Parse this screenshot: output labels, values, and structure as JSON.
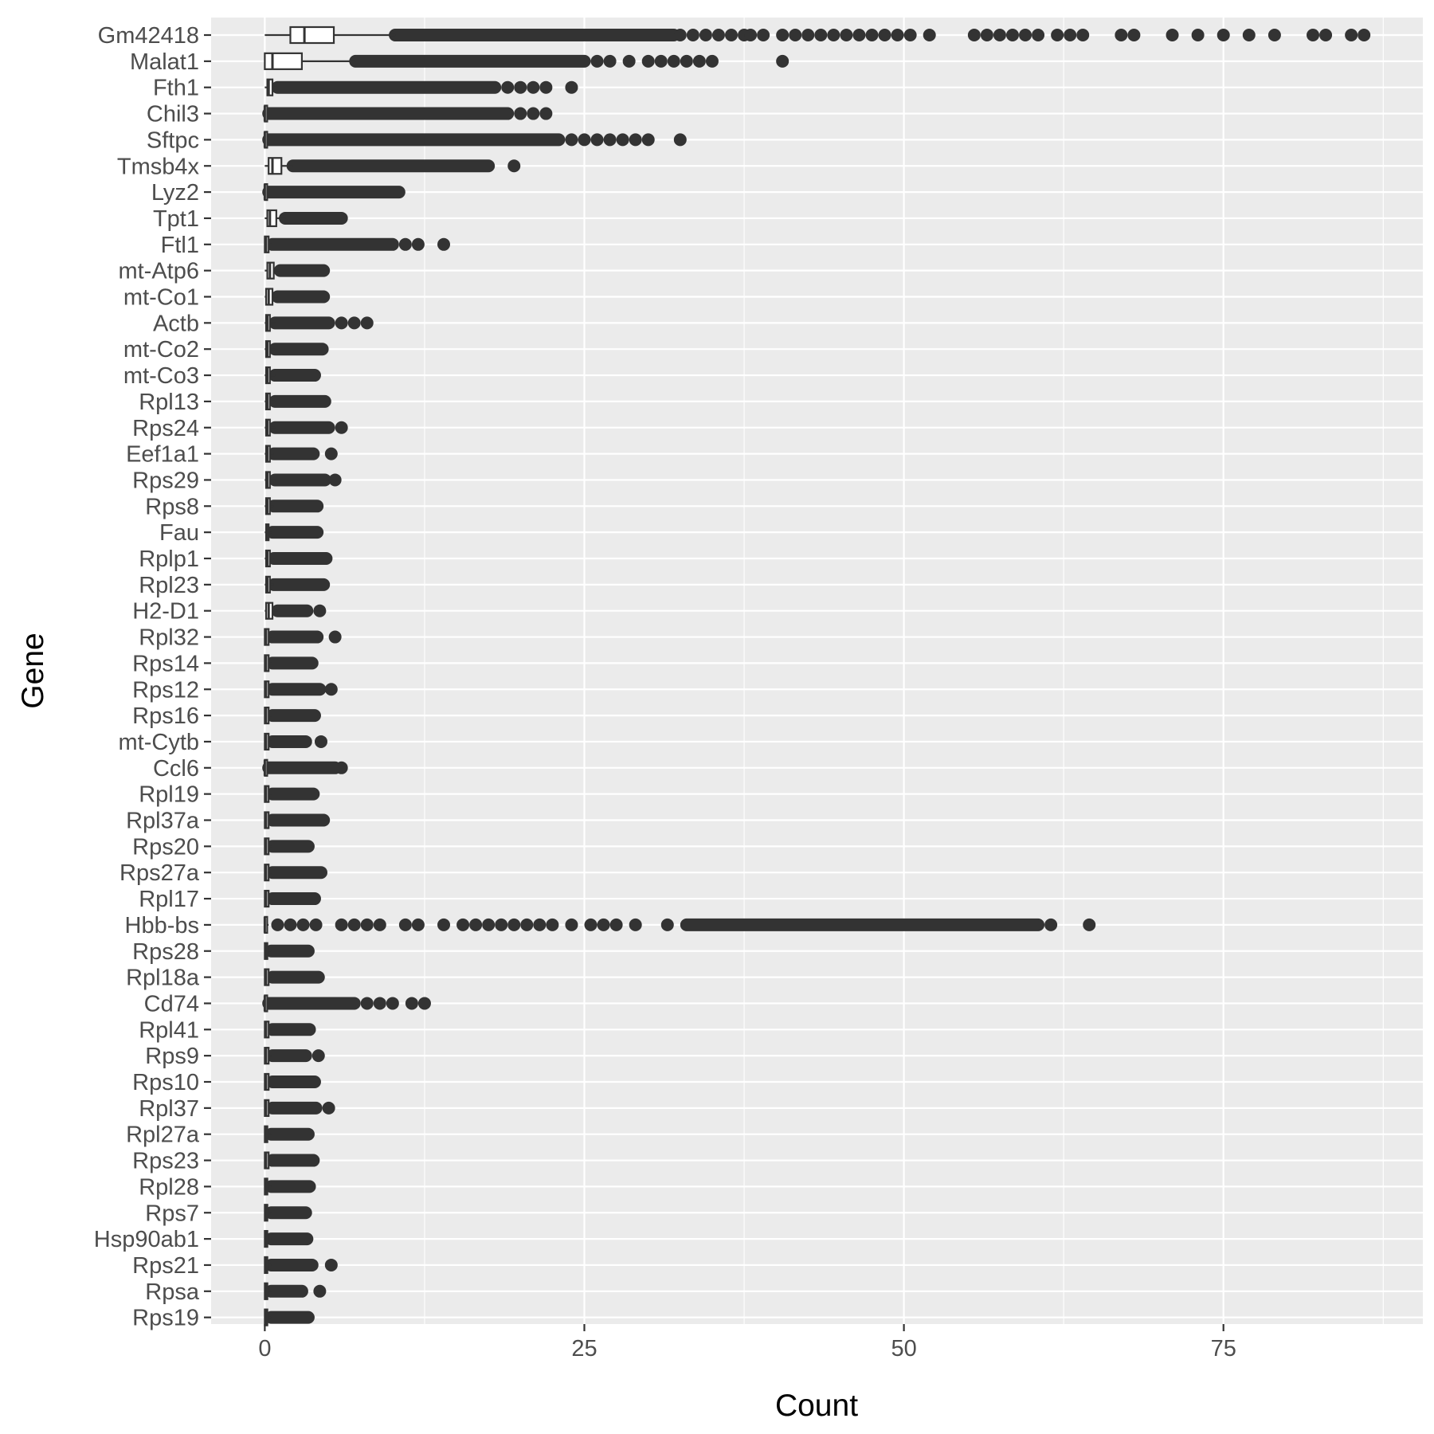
{
  "chart_data": {
    "type": "box",
    "orientation": "horizontal",
    "xlabel": "Count",
    "ylabel": "Gene",
    "xlim": [
      -4.2,
      90.6
    ],
    "x_ticks": [
      0,
      25,
      50,
      75
    ],
    "x_tick_labels": [
      "0",
      "25",
      "50",
      "75"
    ],
    "grid": true,
    "highlight_gene": "Hbb-bs",
    "colors": {
      "panel": "#ebebeb",
      "grid": "#ffffff",
      "mark": "#333333",
      "box_fill": "#ffffff",
      "tick_label": "#4d4d4d",
      "highlight_label": "#00008b"
    },
    "genes": [
      {
        "name": "Gm42418",
        "min": 0,
        "q1": 2,
        "median": 3.1,
        "q3": 5.4,
        "whisker_hi": 10.2,
        "outlier_range": [
          10.2,
          32
        ],
        "outliers": [
          32.5,
          33.5,
          34.5,
          35.5,
          36.5,
          37.5,
          38,
          39,
          40.5,
          41.5,
          42.5,
          43.5,
          44.5,
          45.5,
          46.5,
          47.5,
          48.5,
          49.5,
          50.5,
          52,
          55.5,
          56.5,
          57.5,
          58.5,
          59.5,
          60.5,
          62,
          63,
          64,
          67,
          68,
          71,
          73,
          75,
          77,
          79,
          82,
          83,
          85,
          86
        ]
      },
      {
        "name": "Malat1",
        "min": 0,
        "q1": 0,
        "median": 0.6,
        "q3": 2.9,
        "whisker_hi": 7.1,
        "outlier_range": [
          7.1,
          25
        ],
        "outliers": [
          26,
          27,
          28.5,
          30,
          31,
          32,
          33,
          34,
          35,
          40.5
        ]
      },
      {
        "name": "Fth1",
        "min": 0,
        "q1": 0.2,
        "median": 0.3,
        "q3": 0.6,
        "whisker_hi": 1.0,
        "outlier_range": [
          1.0,
          18
        ],
        "outliers": [
          19,
          20,
          21,
          22,
          24
        ]
      },
      {
        "name": "Chil3",
        "min": 0,
        "q1": 0,
        "median": 0,
        "q3": 0.1,
        "whisker_hi": 0.3,
        "outlier_range": [
          0.3,
          19
        ],
        "outliers": [
          20,
          21,
          22
        ]
      },
      {
        "name": "Sftpc",
        "min": 0,
        "q1": 0,
        "median": 0,
        "q3": 0.1,
        "whisker_hi": 0.3,
        "outlier_range": [
          0.3,
          23
        ],
        "outliers": [
          24,
          25,
          26,
          27,
          28,
          29,
          30,
          32.5
        ]
      },
      {
        "name": "Tmsb4x",
        "min": 0,
        "q1": 0.3,
        "median": 0.6,
        "q3": 1.3,
        "whisker_hi": 2.2,
        "outlier_range": [
          2.2,
          17.5
        ],
        "outliers": [
          19.5
        ]
      },
      {
        "name": "Lyz2",
        "min": 0,
        "q1": 0,
        "median": 0,
        "q3": 0.1,
        "whisker_hi": 0.3,
        "outlier_range": [
          0.3,
          10.5
        ],
        "outliers": []
      },
      {
        "name": "Tpt1",
        "min": 0,
        "q1": 0.2,
        "median": 0.4,
        "q3": 0.9,
        "whisker_hi": 1.6,
        "outlier_range": [
          1.6,
          6
        ],
        "outliers": []
      },
      {
        "name": "Ftl1",
        "min": 0,
        "q1": 0,
        "median": 0.1,
        "q3": 0.3,
        "whisker_hi": 0.6,
        "outlier_range": [
          0.6,
          10
        ],
        "outliers": [
          11,
          12,
          14
        ]
      },
      {
        "name": "mt-Atp6",
        "min": 0,
        "q1": 0.2,
        "median": 0.4,
        "q3": 0.7,
        "whisker_hi": 1.2,
        "outlier_range": [
          1.2,
          4.6
        ],
        "outliers": []
      },
      {
        "name": "mt-Co1",
        "min": 0,
        "q1": 0.1,
        "median": 0.3,
        "q3": 0.6,
        "whisker_hi": 1.0,
        "outlier_range": [
          1.0,
          4.6
        ],
        "outliers": []
      },
      {
        "name": "Actb",
        "min": 0,
        "q1": 0.1,
        "median": 0.2,
        "q3": 0.4,
        "whisker_hi": 0.8,
        "outlier_range": [
          0.8,
          5
        ],
        "outliers": [
          6,
          7,
          8
        ]
      },
      {
        "name": "mt-Co2",
        "min": 0,
        "q1": 0.1,
        "median": 0.2,
        "q3": 0.4,
        "whisker_hi": 0.8,
        "outlier_range": [
          0.8,
          4.5
        ],
        "outliers": []
      },
      {
        "name": "mt-Co3",
        "min": 0,
        "q1": 0.1,
        "median": 0.2,
        "q3": 0.4,
        "whisker_hi": 0.8,
        "outlier_range": [
          0.8,
          3.9
        ],
        "outliers": []
      },
      {
        "name": "Rpl13",
        "min": 0,
        "q1": 0.1,
        "median": 0.2,
        "q3": 0.4,
        "whisker_hi": 0.8,
        "outlier_range": [
          0.8,
          4.7
        ],
        "outliers": []
      },
      {
        "name": "Rps24",
        "min": 0,
        "q1": 0.1,
        "median": 0.2,
        "q3": 0.4,
        "whisker_hi": 0.8,
        "outlier_range": [
          0.8,
          5
        ],
        "outliers": [
          6
        ]
      },
      {
        "name": "Eef1a1",
        "min": 0,
        "q1": 0.1,
        "median": 0.2,
        "q3": 0.4,
        "whisker_hi": 0.7,
        "outlier_range": [
          0.7,
          3.8
        ],
        "outliers": [
          5.2
        ]
      },
      {
        "name": "Rps29",
        "min": 0,
        "q1": 0.1,
        "median": 0.2,
        "q3": 0.4,
        "whisker_hi": 0.8,
        "outlier_range": [
          0.8,
          4.7
        ],
        "outliers": [
          5.5
        ]
      },
      {
        "name": "Rps8",
        "min": 0,
        "q1": 0.1,
        "median": 0.2,
        "q3": 0.4,
        "whisker_hi": 0.7,
        "outlier_range": [
          0.7,
          4.1
        ],
        "outliers": []
      },
      {
        "name": "Fau",
        "min": 0,
        "q1": 0.1,
        "median": 0.2,
        "q3": 0.3,
        "whisker_hi": 0.6,
        "outlier_range": [
          0.6,
          4.1
        ],
        "outliers": []
      },
      {
        "name": "Rplp1",
        "min": 0,
        "q1": 0.1,
        "median": 0.2,
        "q3": 0.4,
        "whisker_hi": 0.7,
        "outlier_range": [
          0.7,
          4.8
        ],
        "outliers": []
      },
      {
        "name": "Rpl23",
        "min": 0,
        "q1": 0.1,
        "median": 0.2,
        "q3": 0.4,
        "whisker_hi": 0.7,
        "outlier_range": [
          0.7,
          4.6
        ],
        "outliers": []
      },
      {
        "name": "H2-D1",
        "min": 0,
        "q1": 0.1,
        "median": 0.3,
        "q3": 0.6,
        "whisker_hi": 1.0,
        "outlier_range": [
          1.0,
          3.3
        ],
        "outliers": [
          4.3
        ]
      },
      {
        "name": "Rpl32",
        "min": 0,
        "q1": 0,
        "median": 0.1,
        "q3": 0.3,
        "whisker_hi": 0.6,
        "outlier_range": [
          0.6,
          4.1
        ],
        "outliers": [
          5.5
        ]
      },
      {
        "name": "Rps14",
        "min": 0,
        "q1": 0,
        "median": 0.1,
        "q3": 0.3,
        "whisker_hi": 0.6,
        "outlier_range": [
          0.6,
          3.7
        ],
        "outliers": []
      },
      {
        "name": "Rps12",
        "min": 0,
        "q1": 0,
        "median": 0.1,
        "q3": 0.3,
        "whisker_hi": 0.6,
        "outlier_range": [
          0.6,
          4.3
        ],
        "outliers": [
          5.2
        ]
      },
      {
        "name": "Rps16",
        "min": 0,
        "q1": 0,
        "median": 0.1,
        "q3": 0.3,
        "whisker_hi": 0.6,
        "outlier_range": [
          0.6,
          3.9
        ],
        "outliers": []
      },
      {
        "name": "mt-Cytb",
        "min": 0,
        "q1": 0,
        "median": 0.1,
        "q3": 0.3,
        "whisker_hi": 0.6,
        "outlier_range": [
          0.6,
          3.2
        ],
        "outliers": [
          4.4
        ]
      },
      {
        "name": "Ccl6",
        "min": 0,
        "q1": 0,
        "median": 0,
        "q3": 0.1,
        "whisker_hi": 0.3,
        "outlier_range": [
          0.3,
          5.5
        ],
        "outliers": [
          6
        ]
      },
      {
        "name": "Rpl19",
        "min": 0,
        "q1": 0,
        "median": 0.1,
        "q3": 0.3,
        "whisker_hi": 0.6,
        "outlier_range": [
          0.6,
          3.8
        ],
        "outliers": []
      },
      {
        "name": "Rpl37a",
        "min": 0,
        "q1": 0,
        "median": 0.1,
        "q3": 0.3,
        "whisker_hi": 0.6,
        "outlier_range": [
          0.6,
          4.6
        ],
        "outliers": []
      },
      {
        "name": "Rps20",
        "min": 0,
        "q1": 0,
        "median": 0.1,
        "q3": 0.3,
        "whisker_hi": 0.6,
        "outlier_range": [
          0.6,
          3.4
        ],
        "outliers": []
      },
      {
        "name": "Rps27a",
        "min": 0,
        "q1": 0,
        "median": 0.1,
        "q3": 0.3,
        "whisker_hi": 0.6,
        "outlier_range": [
          0.6,
          4.4
        ],
        "outliers": []
      },
      {
        "name": "Rpl17",
        "min": 0,
        "q1": 0,
        "median": 0.1,
        "q3": 0.3,
        "whisker_hi": 0.6,
        "outlier_range": [
          0.6,
          3.9
        ],
        "outliers": []
      },
      {
        "name": "Hbb-bs",
        "min": 0,
        "q1": 0,
        "median": 0,
        "q3": 0.1,
        "whisker_hi": 0.3,
        "outlier_range": [
          33,
          60.5
        ],
        "outliers": [
          1,
          2,
          3,
          4,
          6,
          7,
          8,
          9,
          11,
          12,
          14,
          15.5,
          16.5,
          17.5,
          18.5,
          19.5,
          20.5,
          21.5,
          22.5,
          24,
          25.5,
          26.5,
          27.5,
          29,
          31.5,
          61.5,
          64.5
        ]
      },
      {
        "name": "Rps28",
        "min": 0,
        "q1": 0,
        "median": 0.1,
        "q3": 0.2,
        "whisker_hi": 0.5,
        "outlier_range": [
          0.5,
          3.4
        ],
        "outliers": []
      },
      {
        "name": "Rpl18a",
        "min": 0,
        "q1": 0,
        "median": 0.1,
        "q3": 0.3,
        "whisker_hi": 0.6,
        "outlier_range": [
          0.6,
          4.2
        ],
        "outliers": []
      },
      {
        "name": "Cd74",
        "min": 0,
        "q1": 0,
        "median": 0,
        "q3": 0.1,
        "whisker_hi": 0.3,
        "outlier_range": [
          0.3,
          7
        ],
        "outliers": [
          8,
          9,
          10,
          11.5,
          12.5
        ]
      },
      {
        "name": "Rpl41",
        "min": 0,
        "q1": 0,
        "median": 0.1,
        "q3": 0.3,
        "whisker_hi": 0.6,
        "outlier_range": [
          0.6,
          3.5
        ],
        "outliers": []
      },
      {
        "name": "Rps9",
        "min": 0,
        "q1": 0,
        "median": 0.1,
        "q3": 0.3,
        "whisker_hi": 0.6,
        "outlier_range": [
          0.6,
          3.2
        ],
        "outliers": [
          4.2
        ]
      },
      {
        "name": "Rps10",
        "min": 0,
        "q1": 0,
        "median": 0.1,
        "q3": 0.3,
        "whisker_hi": 0.6,
        "outlier_range": [
          0.6,
          3.9
        ],
        "outliers": []
      },
      {
        "name": "Rpl37",
        "min": 0,
        "q1": 0,
        "median": 0.1,
        "q3": 0.3,
        "whisker_hi": 0.6,
        "outlier_range": [
          0.6,
          4
        ],
        "outliers": [
          5
        ]
      },
      {
        "name": "Rpl27a",
        "min": 0,
        "q1": 0,
        "median": 0.1,
        "q3": 0.2,
        "whisker_hi": 0.5,
        "outlier_range": [
          0.5,
          3.4
        ],
        "outliers": []
      },
      {
        "name": "Rps23",
        "min": 0,
        "q1": 0,
        "median": 0.1,
        "q3": 0.3,
        "whisker_hi": 0.6,
        "outlier_range": [
          0.6,
          3.8
        ],
        "outliers": []
      },
      {
        "name": "Rpl28",
        "min": 0,
        "q1": 0,
        "median": 0.1,
        "q3": 0.2,
        "whisker_hi": 0.5,
        "outlier_range": [
          0.5,
          3.5
        ],
        "outliers": []
      },
      {
        "name": "Rps7",
        "min": 0,
        "q1": 0,
        "median": 0.1,
        "q3": 0.2,
        "whisker_hi": 0.5,
        "outlier_range": [
          0.5,
          3.2
        ],
        "outliers": []
      },
      {
        "name": "Hsp90ab1",
        "min": 0,
        "q1": 0,
        "median": 0.1,
        "q3": 0.2,
        "whisker_hi": 0.5,
        "outlier_range": [
          0.5,
          3.3
        ],
        "outliers": []
      },
      {
        "name": "Rps21",
        "min": 0,
        "q1": 0,
        "median": 0.1,
        "q3": 0.2,
        "whisker_hi": 0.5,
        "outlier_range": [
          0.5,
          3.7
        ],
        "outliers": [
          5.2
        ]
      },
      {
        "name": "Rpsa",
        "min": 0,
        "q1": 0,
        "median": 0.1,
        "q3": 0.2,
        "whisker_hi": 0.5,
        "outlier_range": [
          0.5,
          2.9
        ],
        "outliers": [
          4.3
        ]
      },
      {
        "name": "Rps19",
        "min": 0,
        "q1": 0,
        "median": 0.1,
        "q3": 0.2,
        "whisker_hi": 0.5,
        "outlier_range": [
          0.5,
          3.4
        ],
        "outliers": []
      }
    ]
  }
}
